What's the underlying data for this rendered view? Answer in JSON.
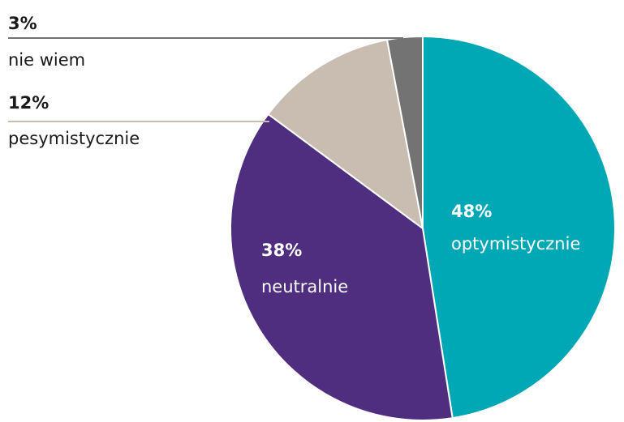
{
  "chart_data": {
    "type": "pie",
    "categories": [
      "optymistycznie",
      "neutralnie",
      "pesymistycznie",
      "nie wiem"
    ],
    "values": [
      48,
      38,
      12,
      3
    ],
    "value_labels": [
      "48%",
      "38%",
      "12%",
      "3%"
    ],
    "colors": [
      "#00a8b5",
      "#4f2d7f",
      "#c8bdb0",
      "#737373"
    ]
  }
}
